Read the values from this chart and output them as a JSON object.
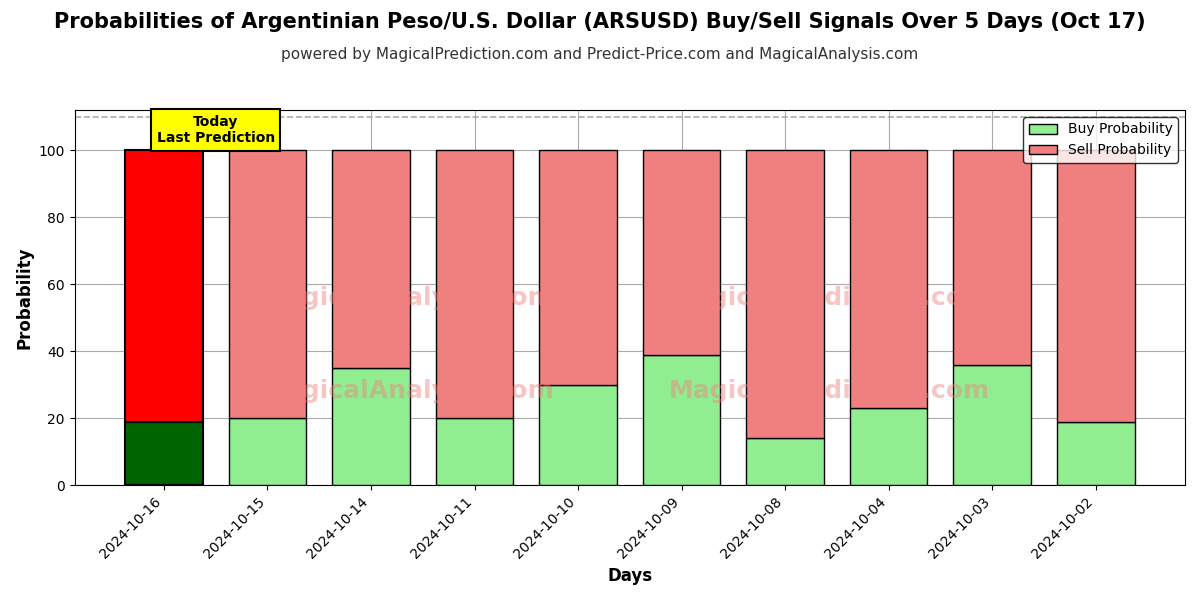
{
  "title": "Probabilities of Argentinian Peso/U.S. Dollar (ARSUSD) Buy/Sell Signals Over 5 Days (Oct 17)",
  "subtitle": "powered by MagicalPrediction.com and Predict-Price.com and MagicalAnalysis.com",
  "xlabel": "Days",
  "ylabel": "Probability",
  "watermark_left": "MagicalAnalysis.com",
  "watermark_right": "MagicalPrediction.com",
  "categories": [
    "2024-10-16",
    "2024-10-15",
    "2024-10-14",
    "2024-10-11",
    "2024-10-10",
    "2024-10-09",
    "2024-10-08",
    "2024-10-04",
    "2024-10-03",
    "2024-10-02"
  ],
  "buy_values": [
    19,
    20,
    35,
    20,
    30,
    39,
    14,
    23,
    36,
    19
  ],
  "sell_values": [
    81,
    80,
    65,
    80,
    70,
    61,
    86,
    77,
    64,
    81
  ],
  "today_idx": 0,
  "today_buy_color": "#006400",
  "today_sell_color": "#ff0000",
  "normal_buy_color": "#90ee90",
  "normal_sell_color": "#f08080",
  "today_label_bg": "#ffff00",
  "today_label_text": "Today\nLast Prediction",
  "legend_buy_label": "Buy Probability",
  "legend_sell_label": "Sell Probability",
  "ylim_max": 112,
  "yticks": [
    0,
    20,
    40,
    60,
    80,
    100
  ],
  "dashed_line_y": 110,
  "title_fontsize": 15,
  "subtitle_fontsize": 11,
  "axis_label_fontsize": 12,
  "tick_fontsize": 10,
  "legend_fontsize": 10,
  "background_color": "#ffffff",
  "grid_color": "#aaaaaa",
  "bar_width": 0.75
}
